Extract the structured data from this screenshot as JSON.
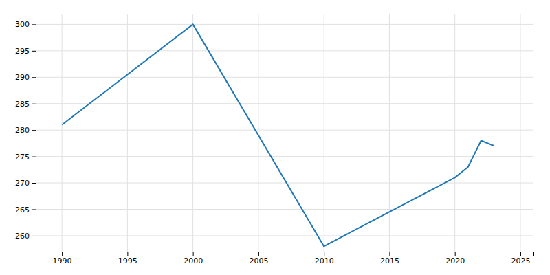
{
  "chart_data": {
    "type": "line",
    "x": [
      1990,
      2000,
      2010,
      2020,
      2021,
      2022,
      2023
    ],
    "values": [
      281,
      300,
      258,
      271,
      273,
      278,
      277
    ],
    "xlim": [
      1988,
      2026
    ],
    "ylim": [
      257,
      302
    ],
    "xticks": [
      1990,
      1995,
      2000,
      2005,
      2010,
      2015,
      2020,
      2025
    ],
    "yticks": [
      260,
      265,
      270,
      275,
      280,
      285,
      290,
      295,
      300
    ],
    "grid": true
  }
}
